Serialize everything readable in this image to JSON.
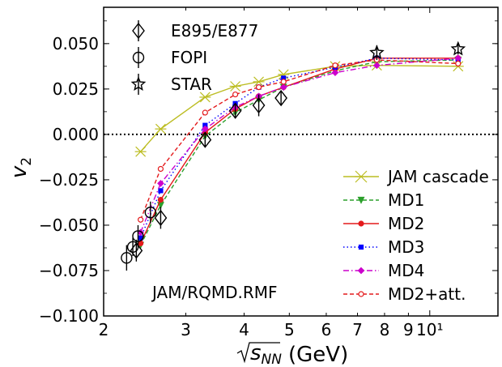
{
  "chart_data": {
    "type": "line",
    "x_scale": "log",
    "xlim": [
      2.0,
      14.0
    ],
    "ylim": [
      -0.1,
      0.07
    ],
    "xlabel": "(GeV)",
    "xlabel_symbol": "sNN",
    "ylabel": "v2",
    "annotation": "JAM/RQMD.RMF",
    "x_ticks": [
      {
        "value": 2,
        "label": "2"
      },
      {
        "value": 3,
        "label": "3"
      },
      {
        "value": 4,
        "label": "4"
      },
      {
        "value": 5,
        "label": "5"
      },
      {
        "value": 6,
        "label": "6"
      },
      {
        "value": 7,
        "label": "7"
      },
      {
        "value": 8,
        "label": "8"
      },
      {
        "value": 9,
        "label": "9"
      },
      {
        "value": 10,
        "label": "10¹"
      }
    ],
    "y_ticks": [
      {
        "value": 0.05,
        "label": "0.050"
      },
      {
        "value": 0.025,
        "label": "0.025"
      },
      {
        "value": 0.0,
        "label": "0.000"
      },
      {
        "value": -0.025,
        "label": "−0.025"
      },
      {
        "value": -0.05,
        "label": "−0.050"
      },
      {
        "value": -0.075,
        "label": "−0.075"
      },
      {
        "value": -0.1,
        "label": "−0.100"
      }
    ],
    "zero_line": true,
    "experiments": [
      {
        "name": "E895/E877",
        "marker": "diamond",
        "points": [
          {
            "x": 2.35,
            "y": -0.064,
            "err": 0.006
          },
          {
            "x": 2.65,
            "y": -0.046,
            "err": 0.006
          },
          {
            "x": 3.3,
            "y": -0.003,
            "err": 0.004
          },
          {
            "x": 3.83,
            "y": 0.013,
            "err": 0.004
          },
          {
            "x": 4.3,
            "y": 0.016,
            "err": 0.006
          },
          {
            "x": 4.8,
            "y": 0.02,
            "err": 0.004
          }
        ]
      },
      {
        "name": "FOPI",
        "marker": "circle",
        "points": [
          {
            "x": 2.24,
            "y": -0.068,
            "err": 0.007
          },
          {
            "x": 2.31,
            "y": -0.062,
            "err": 0.005
          },
          {
            "x": 2.37,
            "y": -0.056,
            "err": 0.006
          },
          {
            "x": 2.52,
            "y": -0.043,
            "err": 0.006
          }
        ]
      },
      {
        "name": "STAR",
        "marker": "star",
        "points": [
          {
            "x": 7.7,
            "y": 0.045,
            "err": 0.004
          },
          {
            "x": 11.5,
            "y": 0.047,
            "err": 0.003
          }
        ]
      }
    ],
    "series": [
      {
        "name": "JAM cascade",
        "color": "#bcbd22",
        "dash": "",
        "marker": "x",
        "x": [
          2.4,
          2.65,
          3.3,
          3.83,
          4.3,
          4.86,
          6.27,
          7.7,
          11.5
        ],
        "y": [
          -0.0095,
          0.003,
          0.0205,
          0.0265,
          0.029,
          0.033,
          0.0375,
          0.038,
          0.0375
        ]
      },
      {
        "name": "MD1",
        "color": "#2ca02c",
        "dash": "5,3",
        "marker": "triangle-down",
        "x": [
          2.4,
          2.65,
          3.3,
          3.83,
          4.3,
          4.86,
          6.27,
          7.7,
          11.5
        ],
        "y": [
          -0.061,
          -0.039,
          -0.001,
          0.012,
          0.019,
          0.026,
          0.035,
          0.04,
          0.041
        ]
      },
      {
        "name": "MD2",
        "color": "#e41a1c",
        "dash": "",
        "marker": "circle",
        "x": [
          2.4,
          2.65,
          3.3,
          3.83,
          4.3,
          4.86,
          6.27,
          7.7,
          11.5
        ],
        "y": [
          -0.06,
          -0.036,
          0.001,
          0.014,
          0.021,
          0.026,
          0.036,
          0.042,
          0.042
        ]
      },
      {
        "name": "MD3",
        "color": "#0000ff",
        "dash": "1.5,3",
        "marker": "square",
        "x": [
          2.4,
          2.65,
          3.3,
          3.83,
          4.3,
          4.86,
          6.27,
          7.7,
          11.5
        ],
        "y": [
          -0.057,
          -0.031,
          0.005,
          0.017,
          0.026,
          0.031,
          0.037,
          0.042,
          0.041
        ]
      },
      {
        "name": "MD4",
        "color": "#cc00cc",
        "dash": "7,3,1.5,3",
        "marker": "diamond",
        "x": [
          2.4,
          2.65,
          3.3,
          3.83,
          4.3,
          4.86,
          6.27,
          7.7,
          11.5
        ],
        "y": [
          -0.054,
          -0.027,
          0.003,
          0.015,
          0.021,
          0.026,
          0.034,
          0.038,
          0.042
        ]
      },
      {
        "name": "MD2+att.",
        "color": "#e41a1c",
        "dash": "5,3",
        "marker": "open-circle",
        "x": [
          2.4,
          2.65,
          3.3,
          3.83,
          4.3,
          4.86,
          6.27,
          7.7,
          11.5
        ],
        "y": [
          -0.047,
          -0.019,
          0.012,
          0.022,
          0.026,
          0.029,
          0.038,
          0.041,
          0.039
        ]
      }
    ],
    "legend_position": "lower-right"
  }
}
